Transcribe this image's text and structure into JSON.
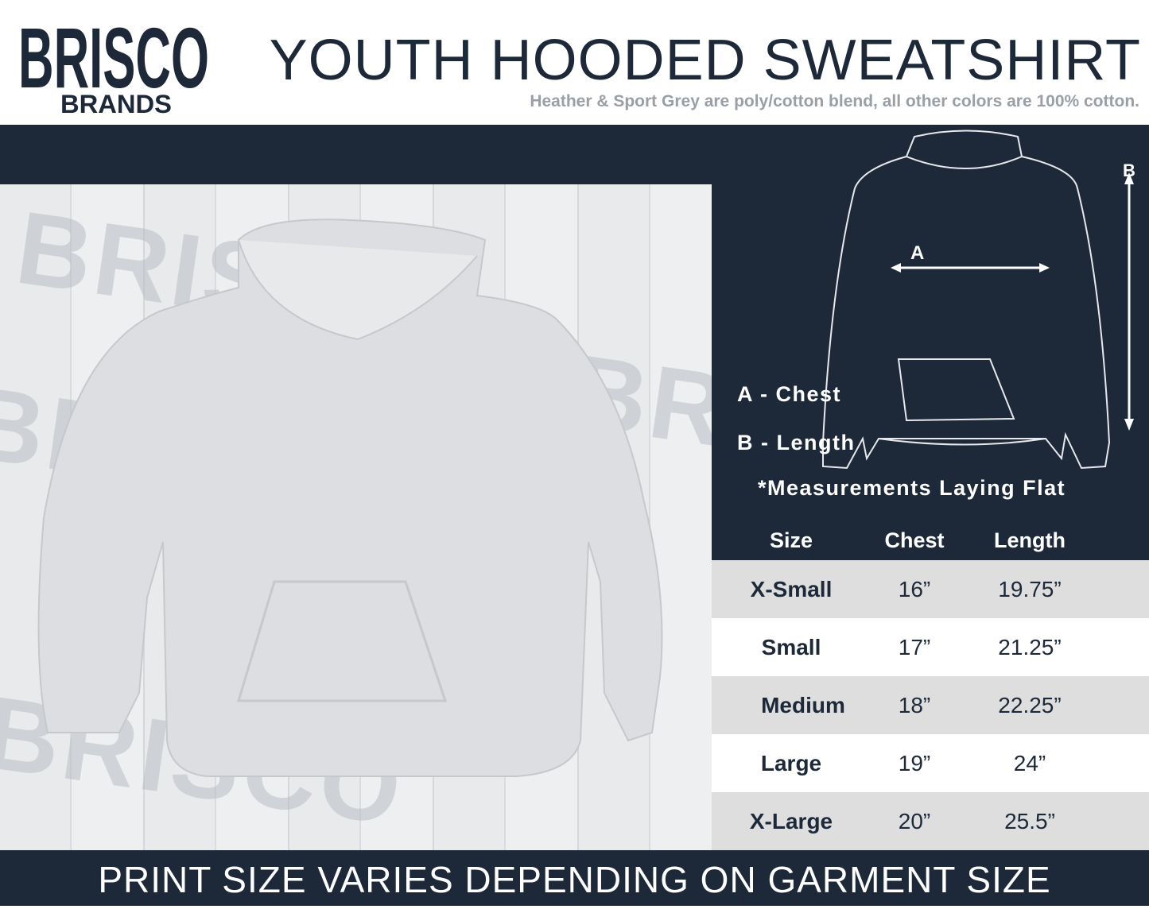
{
  "brand": {
    "logo_text_top": "BRISCO",
    "logo_text_bottom": "BRANDS"
  },
  "header": {
    "title": "YOUTH HOODED SWEATSHIRT",
    "subtitle": "Heather & Sport Grey are poly/cotton blend, all other colors are 100% cotton."
  },
  "diagram": {
    "label_a": "A",
    "label_b": "B",
    "legend_a": "A - Chest",
    "legend_b": "B - Length",
    "note": "*Measurements Laying Flat"
  },
  "table": {
    "headers": [
      "Size",
      "Chest",
      "Length"
    ],
    "rows": [
      [
        "X-Small",
        "16”",
        "19.75”"
      ],
      [
        "Small",
        "17”",
        "21.25”"
      ],
      [
        "Medium",
        "18”",
        "22.25”"
      ],
      [
        "Large",
        "19”",
        "24”"
      ],
      [
        "X-Large",
        "20”",
        "25.5”"
      ]
    ]
  },
  "footer": {
    "text": "PRINT SIZE VARIES DEPENDING ON GARMENT SIZE"
  },
  "colors": {
    "navy": "#1d2939",
    "grey_text": "#9a9ea5",
    "row_alt": "#dedede"
  }
}
